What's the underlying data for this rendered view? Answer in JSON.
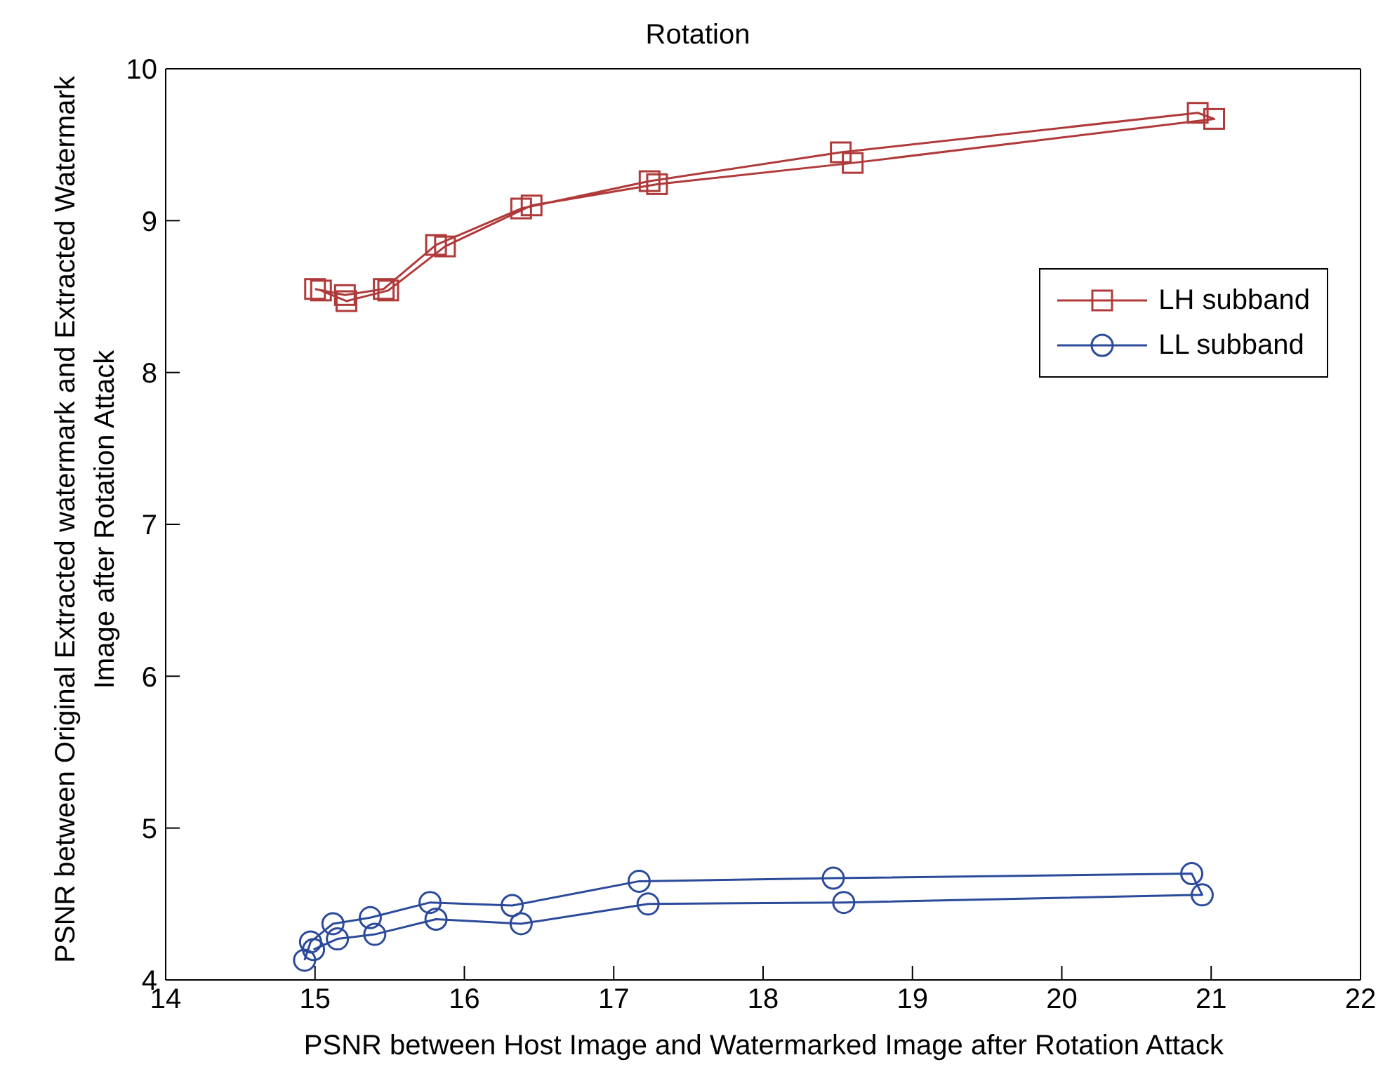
{
  "chart_data": {
    "type": "line",
    "title": "Rotation",
    "xlabel": "PSNR between Host Image and Watermarked Image after Rotation Attack",
    "ylabel": "PSNR between Original Extracted watermark and Extracted Watermark Image after Rotation Attack",
    "xlim": [
      14,
      22
    ],
    "xticks": [
      14,
      15,
      16,
      17,
      18,
      19,
      20,
      21,
      22
    ],
    "ylim": [
      4,
      10
    ],
    "yticks": [
      4,
      5,
      6,
      7,
      8,
      9,
      10
    ],
    "legend": "right",
    "series": [
      {
        "name": "LH subband",
        "color": "#b03a3a",
        "marker": "square",
        "x": [
          15.0,
          15.2,
          15.46,
          15.81,
          16.38,
          17.24,
          18.52,
          20.91,
          21.02,
          18.6,
          17.29,
          16.45,
          15.87,
          15.49,
          15.21,
          15.04
        ],
        "values": [
          8.55,
          8.51,
          8.55,
          8.84,
          9.08,
          9.26,
          9.45,
          9.71,
          9.67,
          9.38,
          9.24,
          9.1,
          8.83,
          8.54,
          8.47,
          8.54
        ]
      },
      {
        "name": "LL subband",
        "color": "#2b4a9a",
        "marker": "circle",
        "x": [
          14.93,
          14.97,
          15.12,
          15.37,
          15.77,
          16.32,
          17.17,
          18.47,
          20.87,
          20.94,
          18.54,
          17.23,
          16.38,
          15.81,
          15.4,
          15.15,
          14.99
        ],
        "values": [
          4.13,
          4.25,
          4.37,
          4.41,
          4.51,
          4.49,
          4.65,
          4.67,
          4.7,
          4.56,
          4.51,
          4.5,
          4.37,
          4.4,
          4.3,
          4.27,
          4.2
        ]
      }
    ]
  }
}
